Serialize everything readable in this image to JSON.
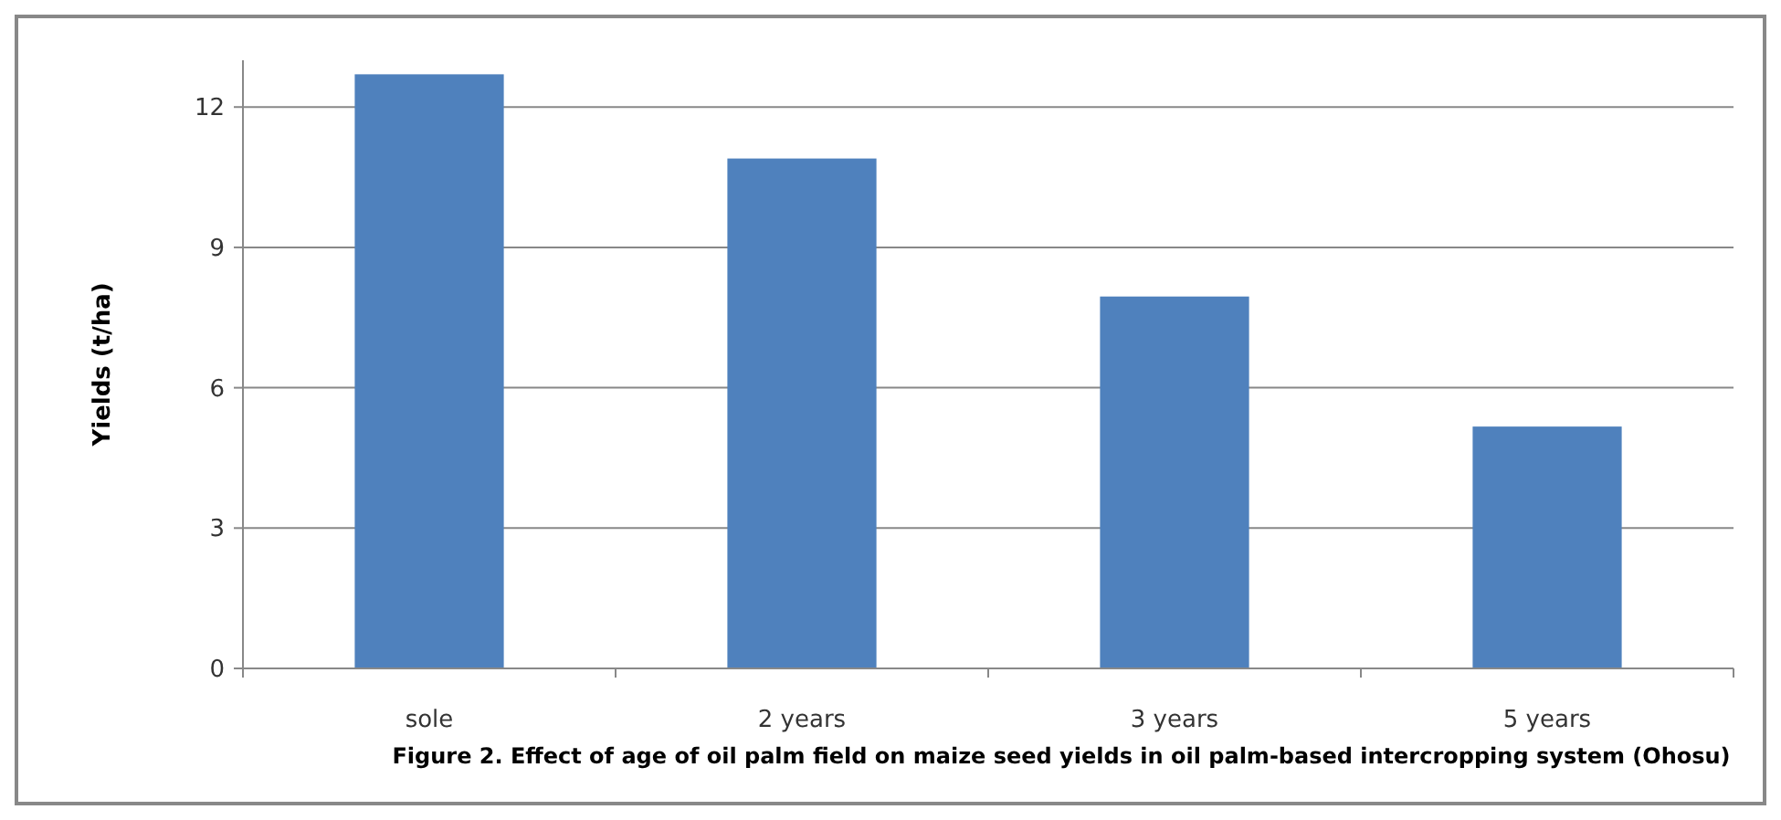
{
  "chart_data": {
    "type": "bar",
    "ylabel": "Yields (t/ha)",
    "categories": [
      "sole",
      "2 years",
      "3 years",
      "5 years"
    ],
    "values": [
      12.7,
      10.9,
      7.95,
      5.17
    ],
    "color": "#4f81bd",
    "ylim": [
      0,
      13
    ],
    "yticks": [
      0,
      3,
      6,
      9,
      12
    ],
    "grid": "y",
    "annotations": [
      "Figure  2.  Effect of age of oil palm field on maize seed yields in oil palm-based intercropping system (Ohosu)"
    ]
  }
}
